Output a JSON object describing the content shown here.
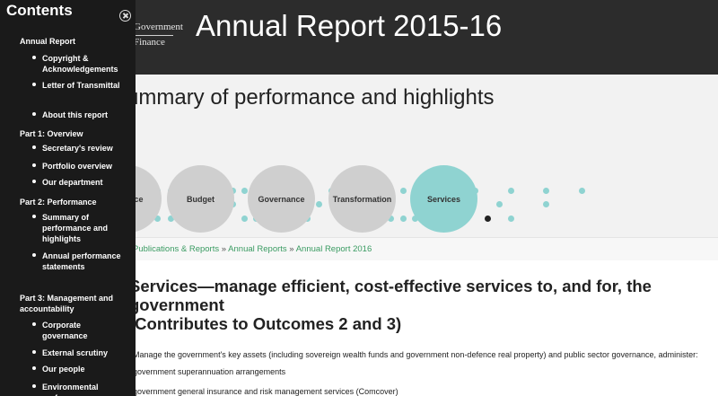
{
  "header": {
    "logo_line1": "Government",
    "logo_line2": "Finance",
    "site_title": "Annual Report 2015-16"
  },
  "summary": {
    "title": "Summary of performance and highlights",
    "categories": [
      {
        "label": "Finance",
        "active": false
      },
      {
        "label": "Budget",
        "active": false
      },
      {
        "label": "Governance",
        "active": false
      },
      {
        "label": "Transformation",
        "active": false
      },
      {
        "label": "Services",
        "active": true
      }
    ],
    "colors": {
      "dot": "#8fd3d1",
      "dot_highlight": "#222222",
      "circle": "#cfcfcf",
      "circle_active": "#8fd3d1"
    }
  },
  "breadcrumb": {
    "items": [
      "Publications & Reports",
      "Annual Reports",
      "Annual Report 2016"
    ],
    "separator": "»",
    "link_color": "#3a9b62"
  },
  "content": {
    "heading_line1": "Services—manage efficient, cost-effective services to, and for, the government",
    "heading_line2": "(Contributes to Outcomes 2 and 3)",
    "intro": "Manage the government's key assets (including sovereign wealth funds and government non-defence real property) and public sector governance, administer:",
    "bullets": [
      "government superannuation arrangements",
      "government general insurance and risk management services (Comcover)"
    ]
  },
  "sidebar": {
    "title": "Contents",
    "close_icon": "close-circle-icon",
    "sections": [
      {
        "label": "Annual Report",
        "items": [
          "Copyright & Acknowledgements",
          "Letter of Transmittal",
          "About this report"
        ]
      },
      {
        "label": "Part 1: Overview",
        "items": [
          "Secretary's review",
          "Portfolio overview",
          "Our department"
        ]
      },
      {
        "label": "Part 2: Performance",
        "items": [
          "Summary of performance and highlights",
          "Annual performance statements"
        ]
      },
      {
        "label": "Part 3: Management and accountability",
        "items": [
          "Corporate governance",
          "External scrutiny",
          "Our people",
          "Environmental performance"
        ]
      }
    ]
  }
}
